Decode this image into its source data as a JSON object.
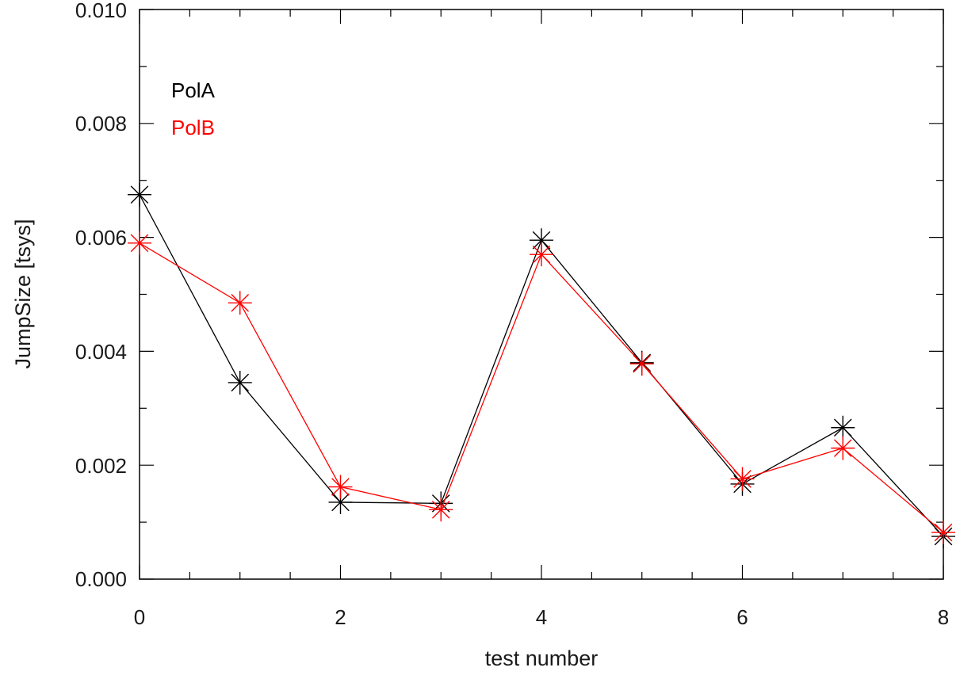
{
  "chart_data": {
    "type": "line",
    "xlabel": "test number",
    "ylabel": "JumpSize [tsys]",
    "xlim": [
      0,
      8
    ],
    "ylim": [
      0.0,
      0.01
    ],
    "x_ticks": [
      "0",
      "2",
      "4",
      "6",
      "8"
    ],
    "y_ticks": [
      "0.000",
      "0.002",
      "0.004",
      "0.006",
      "0.008",
      "0.010"
    ],
    "grid": false,
    "legend_position": "top-left",
    "marker": "asterisk",
    "x": [
      0,
      1,
      2,
      3,
      4,
      5,
      6,
      7,
      8
    ],
    "series": [
      {
        "name": "PolA",
        "color": "#000000",
        "values": [
          0.00675,
          0.00345,
          0.00135,
          0.00133,
          0.00595,
          0.0038,
          0.00167,
          0.00266,
          0.00075
        ]
      },
      {
        "name": "PolB",
        "color": "#ff0000",
        "values": [
          0.0059,
          0.00485,
          0.00162,
          0.00122,
          0.0057,
          0.00378,
          0.00176,
          0.0023,
          0.00082
        ]
      }
    ]
  }
}
